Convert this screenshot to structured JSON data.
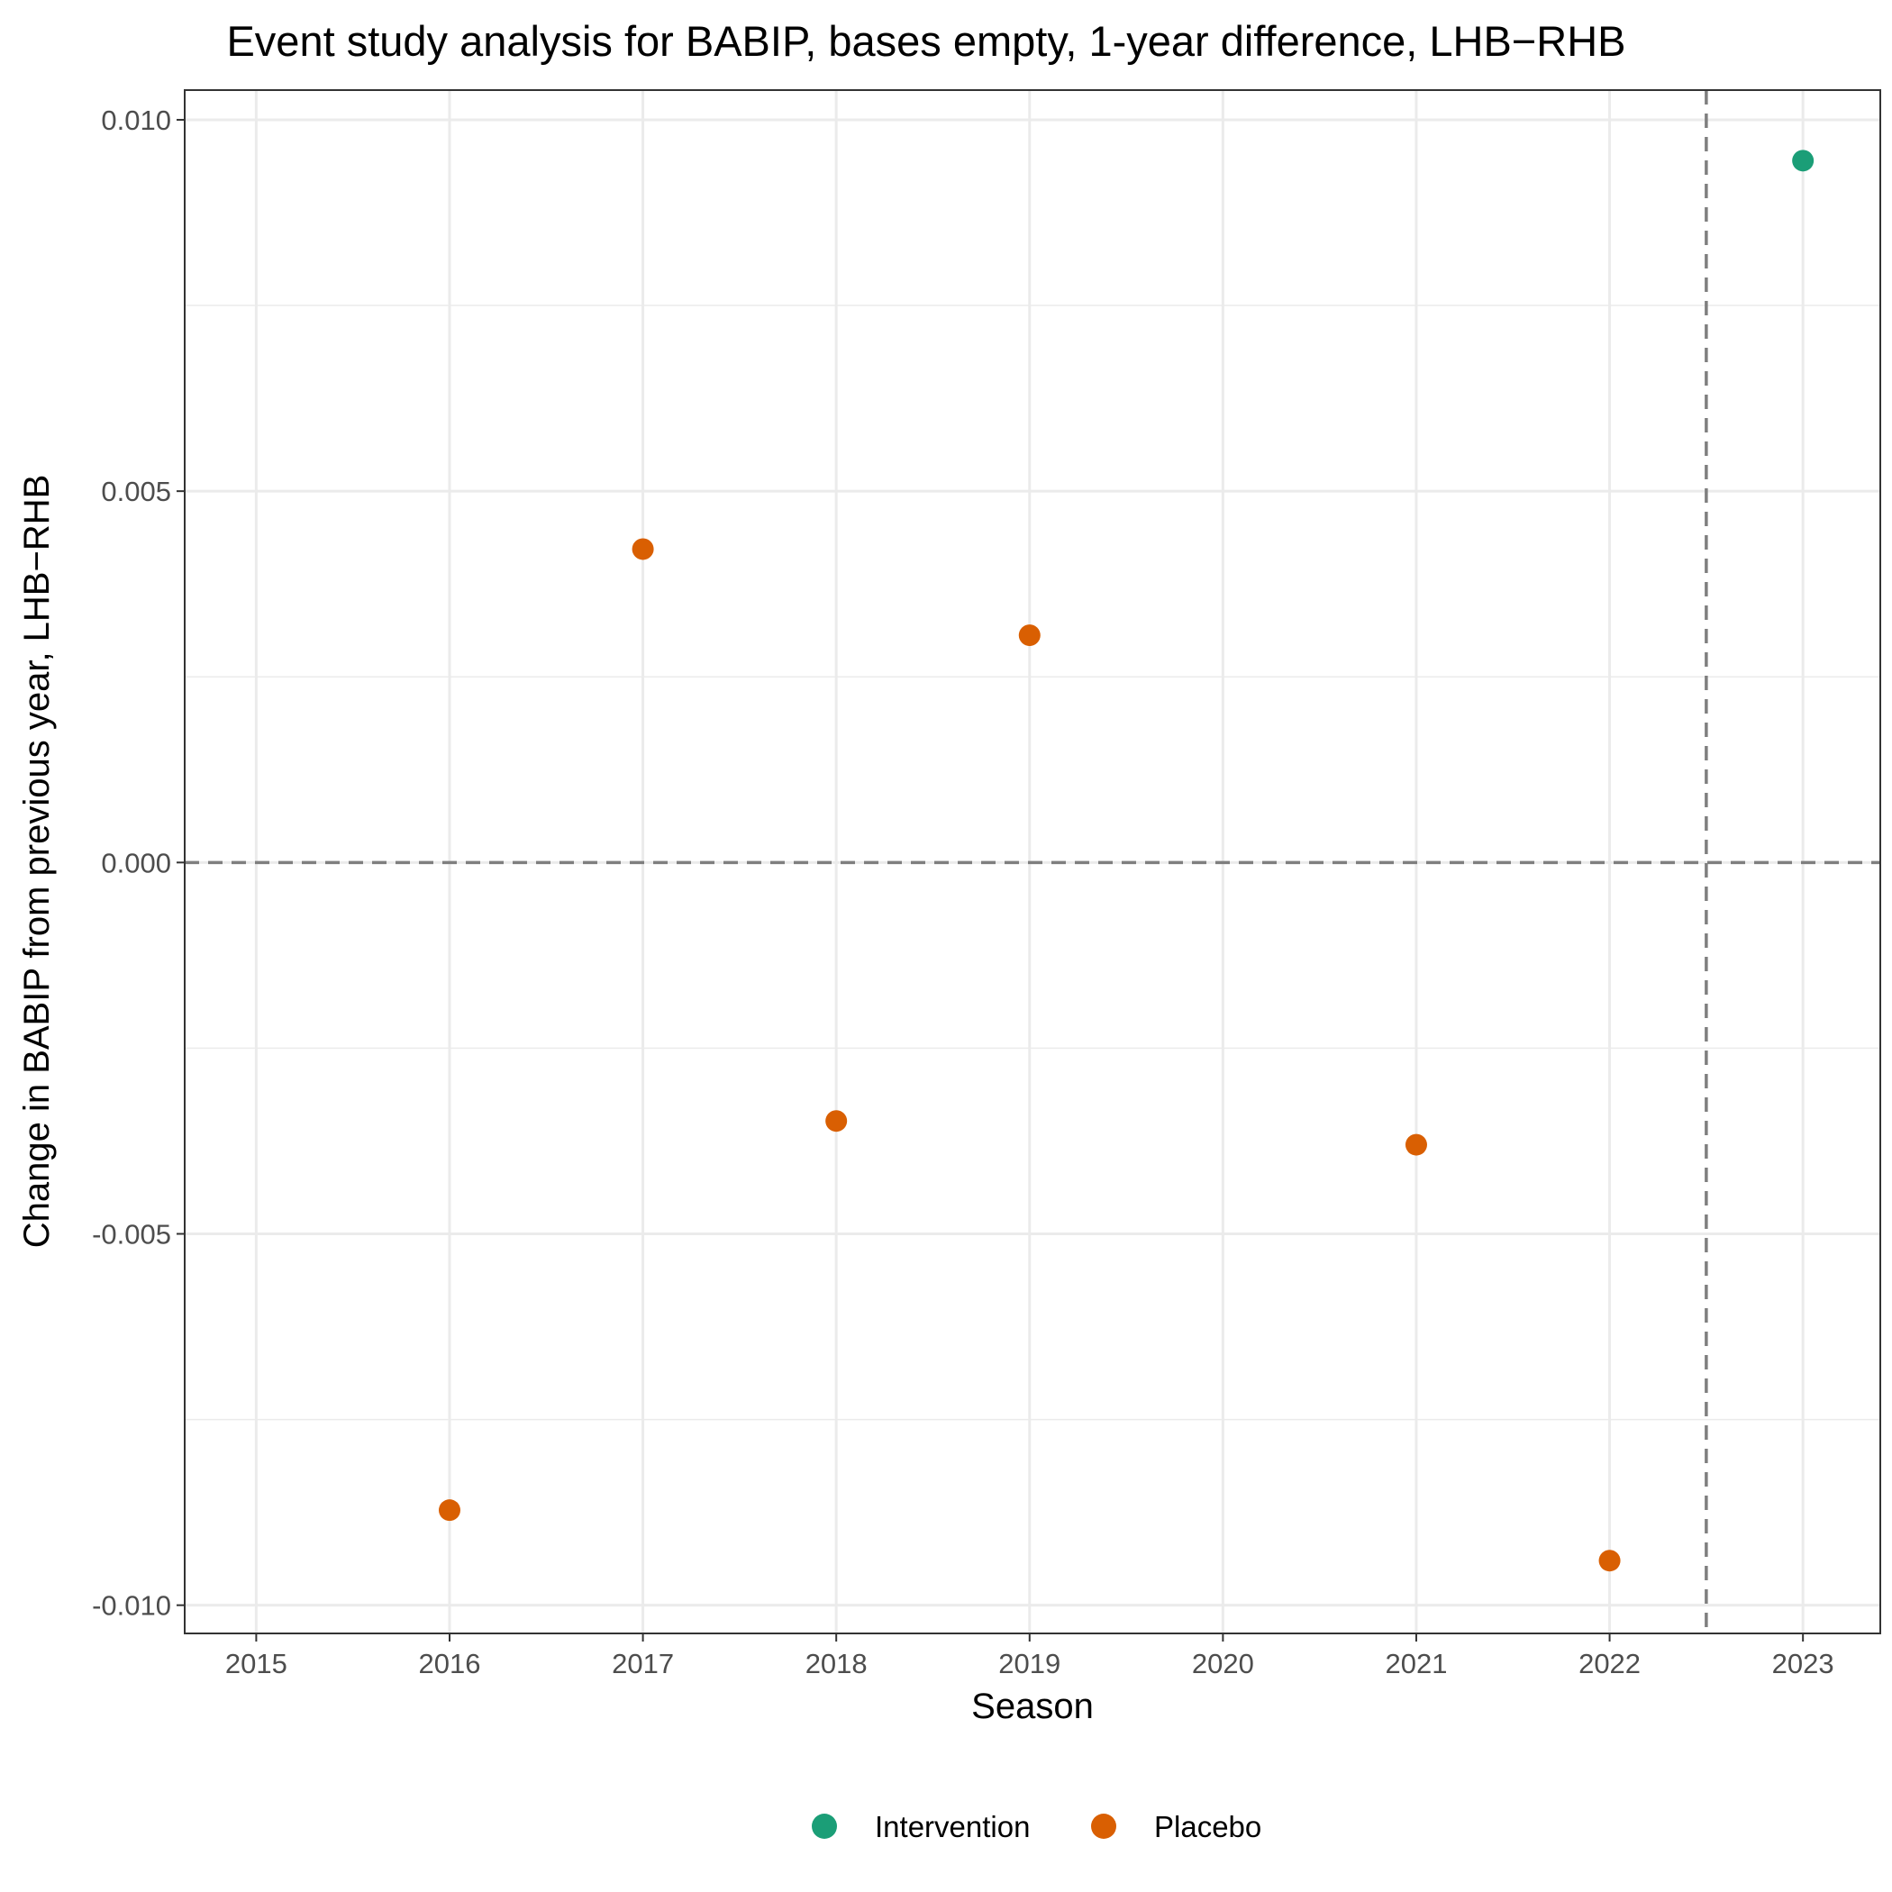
{
  "chart_data": {
    "type": "scatter",
    "title": "Event study analysis for BABIP, bases empty, 1-year difference, LHB−RHB",
    "xlabel": "Season",
    "ylabel": "Change in BABIP from previous year, LHB−RHB",
    "xlim": [
      2014.63,
      2023.4
    ],
    "ylim": [
      -0.01038,
      0.0104
    ],
    "x_ticks": [
      2015,
      2016,
      2017,
      2018,
      2019,
      2020,
      2021,
      2022,
      2023
    ],
    "y_ticks": [
      -0.01,
      -0.005,
      0.0,
      0.005,
      0.01
    ],
    "y_tick_labels": [
      "-0.010",
      "-0.005",
      "0.000",
      "0.005",
      "0.010"
    ],
    "grid": true,
    "reference_lines": {
      "horizontal_y": 0.0,
      "vertical_x": 2022.5,
      "style": "dashed",
      "color": "#7f7f7f"
    },
    "legend_position": "bottom",
    "series": [
      {
        "name": "Intervention",
        "color": "#1b9e77",
        "points": [
          {
            "x": 2023,
            "y": 0.00945
          }
        ]
      },
      {
        "name": "Placebo",
        "color": "#d95f02",
        "points": [
          {
            "x": 2016,
            "y": -0.00872
          },
          {
            "x": 2017,
            "y": 0.00422
          },
          {
            "x": 2018,
            "y": -0.00348
          },
          {
            "x": 2019,
            "y": 0.00306
          },
          {
            "x": 2021,
            "y": -0.0038
          },
          {
            "x": 2022,
            "y": -0.0094
          }
        ]
      }
    ]
  }
}
